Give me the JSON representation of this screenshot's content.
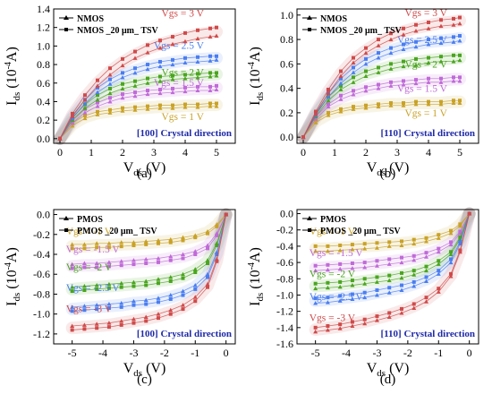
{
  "chart_data": [
    {
      "id": "a",
      "type": "line",
      "panel_label": "(a)",
      "direction_label": "[100] Crystal direction",
      "xlabel_main": "V",
      "xlabel_sub": "ds",
      "xlabel_unit": " (V)",
      "ylabel_main": "I",
      "ylabel_sub": "ds",
      "ylabel_unit_pre": " (10",
      "ylabel_unit_sup": "-4",
      "ylabel_unit_post": "A)",
      "xlim": [
        -0.2,
        5.6
      ],
      "ylim": [
        -0.05,
        1.4
      ],
      "xticks": [
        0,
        1,
        2,
        3,
        4,
        5
      ],
      "xtick_labels": [
        "0",
        "1",
        "2",
        "3",
        "4",
        "5"
      ],
      "yticks": [
        0.0,
        0.2,
        0.4,
        0.6,
        0.8,
        1.0,
        1.2,
        1.4
      ],
      "ytick_labels": [
        "0.0",
        "0.2",
        "0.4",
        "0.6",
        "0.8",
        "1.0",
        "1.2",
        "1.4"
      ],
      "legend": [
        "NMOS",
        "NMOS _20 μm_ TSV"
      ],
      "legend_position": "top-left",
      "x": [
        0,
        0.4,
        0.8,
        1.2,
        1.6,
        2.0,
        2.4,
        2.8,
        3.2,
        3.6,
        4.0,
        4.4,
        4.8,
        5.0
      ],
      "series": [
        {
          "name": "Vgs = 1 V",
          "color": "#c9a227",
          "label_x": 4.6,
          "label_y": 0.2,
          "nmos": [
            0,
            0.14,
            0.22,
            0.26,
            0.28,
            0.3,
            0.31,
            0.32,
            0.33,
            0.33,
            0.34,
            0.34,
            0.35,
            0.35
          ],
          "tsv": [
            0,
            0.17,
            0.25,
            0.29,
            0.31,
            0.33,
            0.34,
            0.35,
            0.36,
            0.36,
            0.37,
            0.37,
            0.38,
            0.38
          ]
        },
        {
          "name": "Vgs = 1.5 V",
          "color": "#c06ad8",
          "label_x": 4.6,
          "label_y": 0.57,
          "nmos": [
            0,
            0.17,
            0.28,
            0.35,
            0.4,
            0.44,
            0.46,
            0.48,
            0.49,
            0.5,
            0.51,
            0.52,
            0.52,
            0.53
          ],
          "tsv": [
            0,
            0.2,
            0.32,
            0.39,
            0.44,
            0.48,
            0.5,
            0.52,
            0.53,
            0.54,
            0.55,
            0.56,
            0.56,
            0.57
          ]
        },
        {
          "name": "Vgs = 2 V",
          "color": "#4aa51f",
          "label_x": 4.6,
          "label_y": 0.68,
          "nmos": [
            0,
            0.2,
            0.33,
            0.42,
            0.49,
            0.54,
            0.57,
            0.6,
            0.62,
            0.64,
            0.65,
            0.66,
            0.67,
            0.68
          ],
          "tsv": [
            0,
            0.23,
            0.37,
            0.47,
            0.54,
            0.59,
            0.62,
            0.65,
            0.67,
            0.68,
            0.69,
            0.7,
            0.71,
            0.71
          ]
        },
        {
          "name": "Vgs = 2.5 V",
          "color": "#4a7ef0",
          "label_x": 4.6,
          "label_y": 0.97,
          "nmos": [
            0,
            0.22,
            0.38,
            0.5,
            0.59,
            0.66,
            0.71,
            0.75,
            0.78,
            0.8,
            0.82,
            0.83,
            0.84,
            0.85
          ],
          "tsv": [
            0,
            0.25,
            0.42,
            0.55,
            0.64,
            0.71,
            0.76,
            0.8,
            0.83,
            0.85,
            0.87,
            0.88,
            0.89,
            0.89
          ]
        },
        {
          "name": "Vgs = 3 V",
          "color": "#d04a4a",
          "label_x": 4.6,
          "label_y": 1.32,
          "nmos": [
            0,
            0.24,
            0.42,
            0.57,
            0.69,
            0.79,
            0.87,
            0.93,
            0.98,
            1.02,
            1.05,
            1.08,
            1.1,
            1.11
          ],
          "tsv": [
            0,
            0.27,
            0.47,
            0.63,
            0.76,
            0.86,
            0.94,
            1.01,
            1.06,
            1.1,
            1.14,
            1.17,
            1.19,
            1.2
          ]
        }
      ]
    },
    {
      "id": "b",
      "type": "line",
      "panel_label": "(b)",
      "direction_label": "[110] Crystal direction",
      "xlabel_main": "V",
      "xlabel_sub": "ds",
      "xlabel_unit": " (V)",
      "ylabel_main": "I",
      "ylabel_sub": "ds",
      "ylabel_unit_pre": " (10",
      "ylabel_unit_sup": "-4",
      "ylabel_unit_post": "A)",
      "xlim": [
        -0.2,
        5.6
      ],
      "ylim": [
        -0.05,
        1.05
      ],
      "xticks": [
        0,
        1,
        2,
        3,
        4,
        5
      ],
      "xtick_labels": [
        "0",
        "1",
        "2",
        "3",
        "4",
        "5"
      ],
      "yticks": [
        0.0,
        0.2,
        0.4,
        0.6,
        0.8,
        1.0
      ],
      "ytick_labels": [
        "0.0",
        "0.2",
        "0.4",
        "0.6",
        "0.8",
        "1.0"
      ],
      "legend": [
        "NMOS",
        "NMOS _20 μm_ TSV"
      ],
      "legend_position": "top-left",
      "x": [
        0,
        0.4,
        0.8,
        1.2,
        1.6,
        2.0,
        2.4,
        2.8,
        3.2,
        3.6,
        4.0,
        4.4,
        4.8,
        5.0
      ],
      "series": [
        {
          "name": "Vgs = 1 V",
          "color": "#c9a227",
          "label_x": 4.6,
          "label_y": 0.17,
          "nmos": [
            0,
            0.12,
            0.18,
            0.21,
            0.23,
            0.24,
            0.25,
            0.26,
            0.26,
            0.27,
            0.27,
            0.27,
            0.28,
            0.28
          ],
          "tsv": [
            0,
            0.14,
            0.2,
            0.23,
            0.25,
            0.26,
            0.27,
            0.28,
            0.28,
            0.29,
            0.29,
            0.29,
            0.3,
            0.3
          ]
        },
        {
          "name": "Vgs = 1.5 V",
          "color": "#c06ad8",
          "label_x": 4.6,
          "label_y": 0.37,
          "nmos": [
            0,
            0.15,
            0.25,
            0.31,
            0.35,
            0.38,
            0.4,
            0.42,
            0.43,
            0.44,
            0.45,
            0.45,
            0.46,
            0.46
          ],
          "tsv": [
            0,
            0.17,
            0.27,
            0.34,
            0.38,
            0.41,
            0.43,
            0.45,
            0.46,
            0.47,
            0.48,
            0.48,
            0.49,
            0.49
          ]
        },
        {
          "name": "Vgs = 2 V",
          "color": "#4aa51f",
          "label_x": 4.6,
          "label_y": 0.57,
          "nmos": [
            0,
            0.17,
            0.3,
            0.39,
            0.45,
            0.5,
            0.53,
            0.56,
            0.58,
            0.59,
            0.61,
            0.62,
            0.62,
            0.63
          ],
          "tsv": [
            0,
            0.19,
            0.33,
            0.42,
            0.49,
            0.54,
            0.57,
            0.6,
            0.62,
            0.64,
            0.65,
            0.66,
            0.67,
            0.67
          ]
        },
        {
          "name": "Vgs = 2.5 V",
          "color": "#4a7ef0",
          "label_x": 4.6,
          "label_y": 0.77,
          "nmos": [
            0,
            0.18,
            0.33,
            0.44,
            0.53,
            0.6,
            0.65,
            0.69,
            0.72,
            0.74,
            0.76,
            0.77,
            0.78,
            0.79
          ],
          "tsv": [
            0,
            0.2,
            0.36,
            0.48,
            0.57,
            0.64,
            0.69,
            0.73,
            0.76,
            0.78,
            0.8,
            0.81,
            0.82,
            0.83
          ]
        },
        {
          "name": "Vgs = 3 V",
          "color": "#d04a4a",
          "label_x": 4.6,
          "label_y": 0.99,
          "nmos": [
            0,
            0.19,
            0.36,
            0.5,
            0.61,
            0.69,
            0.75,
            0.8,
            0.84,
            0.87,
            0.89,
            0.91,
            0.92,
            0.93
          ],
          "tsv": [
            0,
            0.21,
            0.39,
            0.54,
            0.65,
            0.73,
            0.8,
            0.85,
            0.89,
            0.92,
            0.94,
            0.96,
            0.97,
            0.98
          ]
        }
      ]
    },
    {
      "id": "c",
      "type": "line",
      "panel_label": "(c)",
      "direction_label": "[100] Crystal direction",
      "xlabel_main": "V",
      "xlabel_sub": "ds",
      "xlabel_unit": " (V)",
      "ylabel_main": "I",
      "ylabel_sub": "ds",
      "ylabel_unit_pre": " (10",
      "ylabel_unit_sup": "-4",
      "ylabel_unit_post": "A)",
      "xlim": [
        -5.6,
        0.3
      ],
      "ylim": [
        -1.3,
        0.05
      ],
      "xticks": [
        -5,
        -4,
        -3,
        -2,
        -1,
        0
      ],
      "xtick_labels": [
        "-5",
        "-4",
        "-3",
        "-2",
        "-1",
        "0"
      ],
      "yticks": [
        0.0,
        -0.2,
        -0.4,
        -0.6,
        -0.8,
        -1.0,
        -1.2
      ],
      "ytick_labels": [
        "0.0",
        "-0.2",
        "-0.4",
        "-0.6",
        "-0.8",
        "-1.0",
        "-1.2"
      ],
      "legend": [
        "PMOS",
        "PMOS _20 μm_ TSV"
      ],
      "legend_position": "top-left",
      "x": [
        -5.0,
        -4.6,
        -4.2,
        -3.8,
        -3.4,
        -3.0,
        -2.6,
        -2.2,
        -1.8,
        -1.4,
        -1.0,
        -0.6,
        -0.3,
        0
      ],
      "series": [
        {
          "name": "Vgs = -1 V",
          "color": "#c9a227",
          "label_x": -5.2,
          "label_y": -0.2,
          "nmos": [
            -0.3,
            -0.3,
            -0.29,
            -0.29,
            -0.28,
            -0.28,
            -0.27,
            -0.26,
            -0.25,
            -0.23,
            -0.21,
            -0.17,
            -0.1,
            0
          ],
          "tsv": [
            -0.34,
            -0.34,
            -0.33,
            -0.33,
            -0.32,
            -0.31,
            -0.3,
            -0.29,
            -0.28,
            -0.26,
            -0.23,
            -0.19,
            -0.12,
            0
          ]
        },
        {
          "name": "Vgs = -1.5 V",
          "color": "#c06ad8",
          "label_x": -5.2,
          "label_y": -0.38,
          "nmos": [
            -0.5,
            -0.49,
            -0.49,
            -0.48,
            -0.47,
            -0.46,
            -0.45,
            -0.44,
            -0.42,
            -0.4,
            -0.37,
            -0.31,
            -0.19,
            0
          ],
          "tsv": [
            -0.54,
            -0.53,
            -0.53,
            -0.52,
            -0.51,
            -0.5,
            -0.49,
            -0.48,
            -0.46,
            -0.44,
            -0.4,
            -0.34,
            -0.21,
            0
          ]
        },
        {
          "name": "Vgs = -2 V",
          "color": "#4aa51f",
          "label_x": -5.2,
          "label_y": -0.56,
          "nmos": [
            -0.73,
            -0.72,
            -0.71,
            -0.7,
            -0.69,
            -0.68,
            -0.67,
            -0.65,
            -0.63,
            -0.6,
            -0.55,
            -0.46,
            -0.29,
            0
          ],
          "tsv": [
            -0.77,
            -0.76,
            -0.75,
            -0.74,
            -0.73,
            -0.72,
            -0.71,
            -0.69,
            -0.67,
            -0.64,
            -0.58,
            -0.49,
            -0.31,
            0
          ]
        },
        {
          "name": "Vgs = -2.5 V",
          "color": "#4a7ef0",
          "label_x": -5.2,
          "label_y": -0.77,
          "nmos": [
            -0.93,
            -0.92,
            -0.91,
            -0.9,
            -0.89,
            -0.87,
            -0.86,
            -0.84,
            -0.81,
            -0.77,
            -0.71,
            -0.6,
            -0.38,
            0
          ],
          "tsv": [
            -0.97,
            -0.96,
            -0.95,
            -0.94,
            -0.93,
            -0.91,
            -0.9,
            -0.88,
            -0.85,
            -0.81,
            -0.75,
            -0.63,
            -0.4,
            0
          ]
        },
        {
          "name": "Vgs = -3 V",
          "color": "#d04a4a",
          "label_x": -5.2,
          "label_y": -0.98,
          "nmos": [
            -1.12,
            -1.11,
            -1.1,
            -1.09,
            -1.07,
            -1.05,
            -1.03,
            -1.0,
            -0.96,
            -0.91,
            -0.83,
            -0.7,
            -0.45,
            0
          ],
          "tsv": [
            -1.16,
            -1.15,
            -1.14,
            -1.13,
            -1.11,
            -1.09,
            -1.07,
            -1.04,
            -1.0,
            -0.95,
            -0.87,
            -0.73,
            -0.47,
            0
          ]
        }
      ]
    },
    {
      "id": "d",
      "type": "line",
      "panel_label": "(d)",
      "direction_label": "[110] Crystal direction",
      "xlabel_main": "V",
      "xlabel_sub": "ds",
      "xlabel_unit": " (V)",
      "ylabel_main": "I",
      "ylabel_sub": "ds",
      "ylabel_unit_pre": " (10",
      "ylabel_unit_sup": "-4",
      "ylabel_unit_post": "A)",
      "xlim": [
        -5.6,
        0.3
      ],
      "ylim": [
        -1.6,
        0.05
      ],
      "xticks": [
        -5,
        -4,
        -3,
        -2,
        -1,
        0
      ],
      "xtick_labels": [
        "-5",
        "-4",
        "-3",
        "-2",
        "-1",
        "0"
      ],
      "yticks": [
        0.0,
        -0.2,
        -0.4,
        -0.6,
        -0.8,
        -1.0,
        -1.2,
        -1.4,
        -1.6
      ],
      "ytick_labels": [
        "0.0",
        "-0.2",
        "-0.4",
        "-0.6",
        "-0.8",
        "-1.0",
        "-1.2",
        "-1.4",
        "-1.6"
      ],
      "legend": [
        "PMOS",
        "PMOS _20 μm_ TSV"
      ],
      "legend_position": "top-left",
      "x": [
        -5.0,
        -4.6,
        -4.2,
        -3.8,
        -3.4,
        -3.0,
        -2.6,
        -2.2,
        -1.8,
        -1.4,
        -1.0,
        -0.6,
        -0.3,
        0
      ],
      "series": [
        {
          "name": "Vgs = -1 V",
          "color": "#c9a227",
          "label_x": -5.2,
          "label_y": -0.26,
          "nmos": [
            -0.46,
            -0.46,
            -0.45,
            -0.44,
            -0.43,
            -0.42,
            -0.4,
            -0.39,
            -0.37,
            -0.34,
            -0.3,
            -0.24,
            -0.15,
            0
          ],
          "tsv": [
            -0.4,
            -0.4,
            -0.39,
            -0.38,
            -0.37,
            -0.36,
            -0.35,
            -0.34,
            -0.32,
            -0.3,
            -0.26,
            -0.21,
            -0.13,
            0
          ]
        },
        {
          "name": "Vgs = -1.5 V",
          "color": "#c06ad8",
          "label_x": -5.2,
          "label_y": -0.52,
          "nmos": [
            -0.7,
            -0.69,
            -0.68,
            -0.67,
            -0.66,
            -0.64,
            -0.62,
            -0.6,
            -0.57,
            -0.53,
            -0.47,
            -0.38,
            -0.24,
            0
          ],
          "tsv": [
            -0.64,
            -0.63,
            -0.62,
            -0.61,
            -0.6,
            -0.58,
            -0.56,
            -0.54,
            -0.52,
            -0.48,
            -0.43,
            -0.35,
            -0.22,
            0
          ]
        },
        {
          "name": "Vgs = -2 V",
          "color": "#4aa51f",
          "label_x": -5.2,
          "label_y": -0.78,
          "nmos": [
            -0.92,
            -0.91,
            -0.9,
            -0.88,
            -0.86,
            -0.84,
            -0.82,
            -0.79,
            -0.75,
            -0.7,
            -0.62,
            -0.5,
            -0.31,
            0
          ],
          "tsv": [
            -0.86,
            -0.85,
            -0.84,
            -0.82,
            -0.8,
            -0.78,
            -0.76,
            -0.73,
            -0.7,
            -0.65,
            -0.58,
            -0.47,
            -0.29,
            0
          ]
        },
        {
          "name": "Vgs = -2.5 V",
          "color": "#4a7ef0",
          "label_x": -5.2,
          "label_y": -1.06,
          "nmos": [
            -1.1,
            -1.09,
            -1.07,
            -1.05,
            -1.03,
            -1.0,
            -0.97,
            -0.94,
            -0.89,
            -0.83,
            -0.74,
            -0.6,
            -0.37,
            0
          ],
          "tsv": [
            -1.04,
            -1.03,
            -1.01,
            -0.99,
            -0.97,
            -0.94,
            -0.91,
            -0.88,
            -0.84,
            -0.78,
            -0.7,
            -0.56,
            -0.35,
            0
          ]
        },
        {
          "name": "Vgs = -3 V",
          "color": "#d04a4a",
          "label_x": -5.2,
          "label_y": -1.32,
          "nmos": [
            -1.45,
            -1.43,
            -1.41,
            -1.38,
            -1.35,
            -1.31,
            -1.27,
            -1.22,
            -1.16,
            -1.08,
            -0.96,
            -0.77,
            -0.47,
            0
          ],
          "tsv": [
            -1.4,
            -1.38,
            -1.36,
            -1.33,
            -1.3,
            -1.26,
            -1.22,
            -1.17,
            -1.11,
            -1.03,
            -0.92,
            -0.74,
            -0.45,
            0
          ]
        }
      ]
    }
  ]
}
